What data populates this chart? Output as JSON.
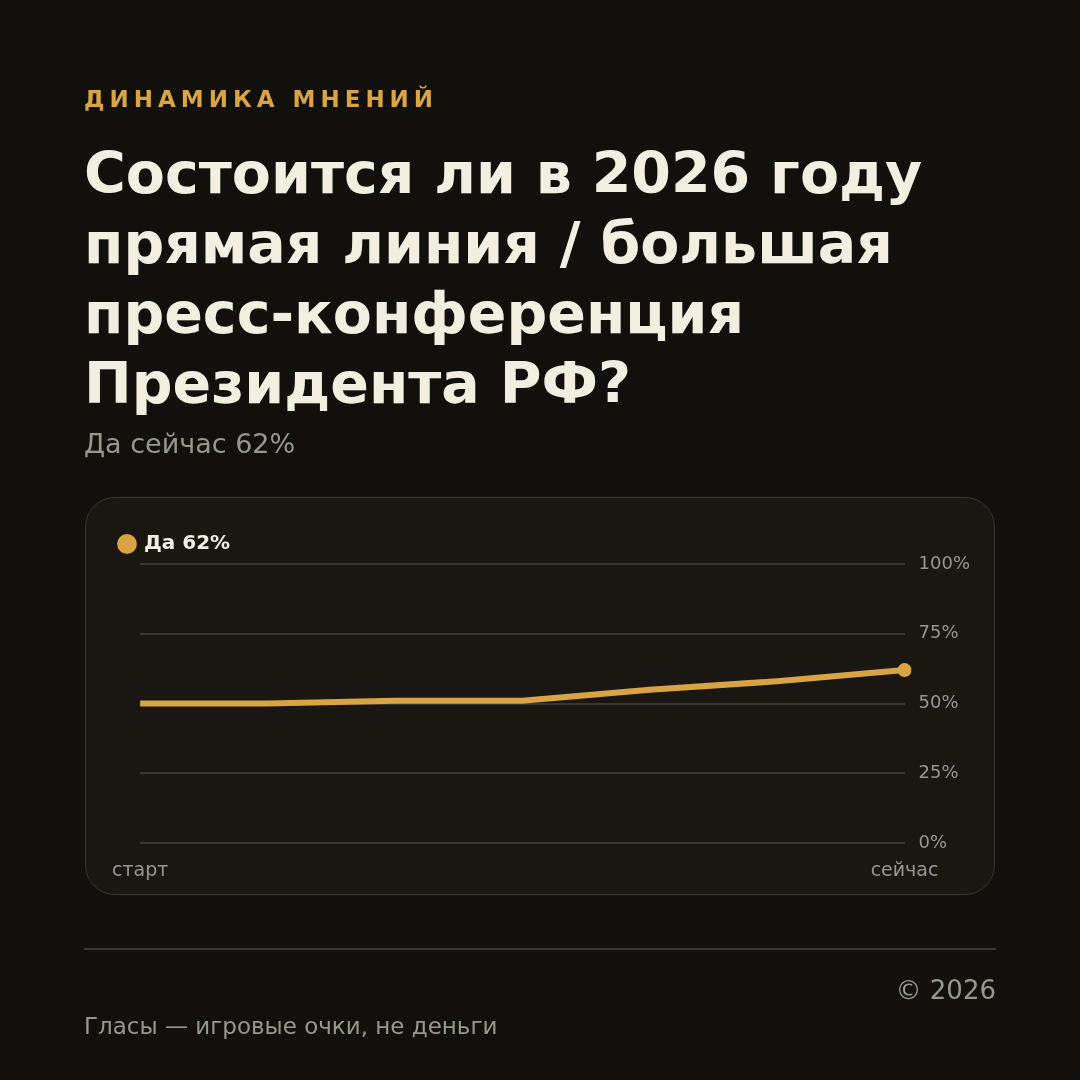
{
  "chart_data": {
    "type": "line",
    "title": "Состоится ли в 2026 году прямая линия / большая пресс-конференция Президента РФ?",
    "subtitle": "Да сейчас 62%",
    "annotations": [
      "ДИНАМИКА МНЕНИЙ",
      "Гласы — игровые очки, не деньги",
      "© 2026"
    ],
    "categories": [
      "старт",
      null,
      null,
      null,
      null,
      null,
      "сейчас"
    ],
    "series": [
      {
        "name": "Да 62%",
        "color": "#d9a444",
        "values": [
          50,
          50,
          51,
          51,
          55,
          58,
          62
        ]
      },
      {
        "type": "scatter",
        "color": "#d9a444",
        "x": [
          "сейчас"
        ],
        "values": [
          62
        ]
      }
    ],
    "ylim": [
      0,
      100
    ],
    "yticks": [
      {
        "value": 0,
        "label": "0%"
      },
      {
        "value": 25,
        "label": "25%"
      },
      {
        "value": 50,
        "label": "50%"
      },
      {
        "value": 75,
        "label": "75%"
      },
      {
        "value": 100,
        "label": "100%"
      }
    ],
    "grid": "y",
    "legend": "top left",
    "line_style": "solid"
  }
}
